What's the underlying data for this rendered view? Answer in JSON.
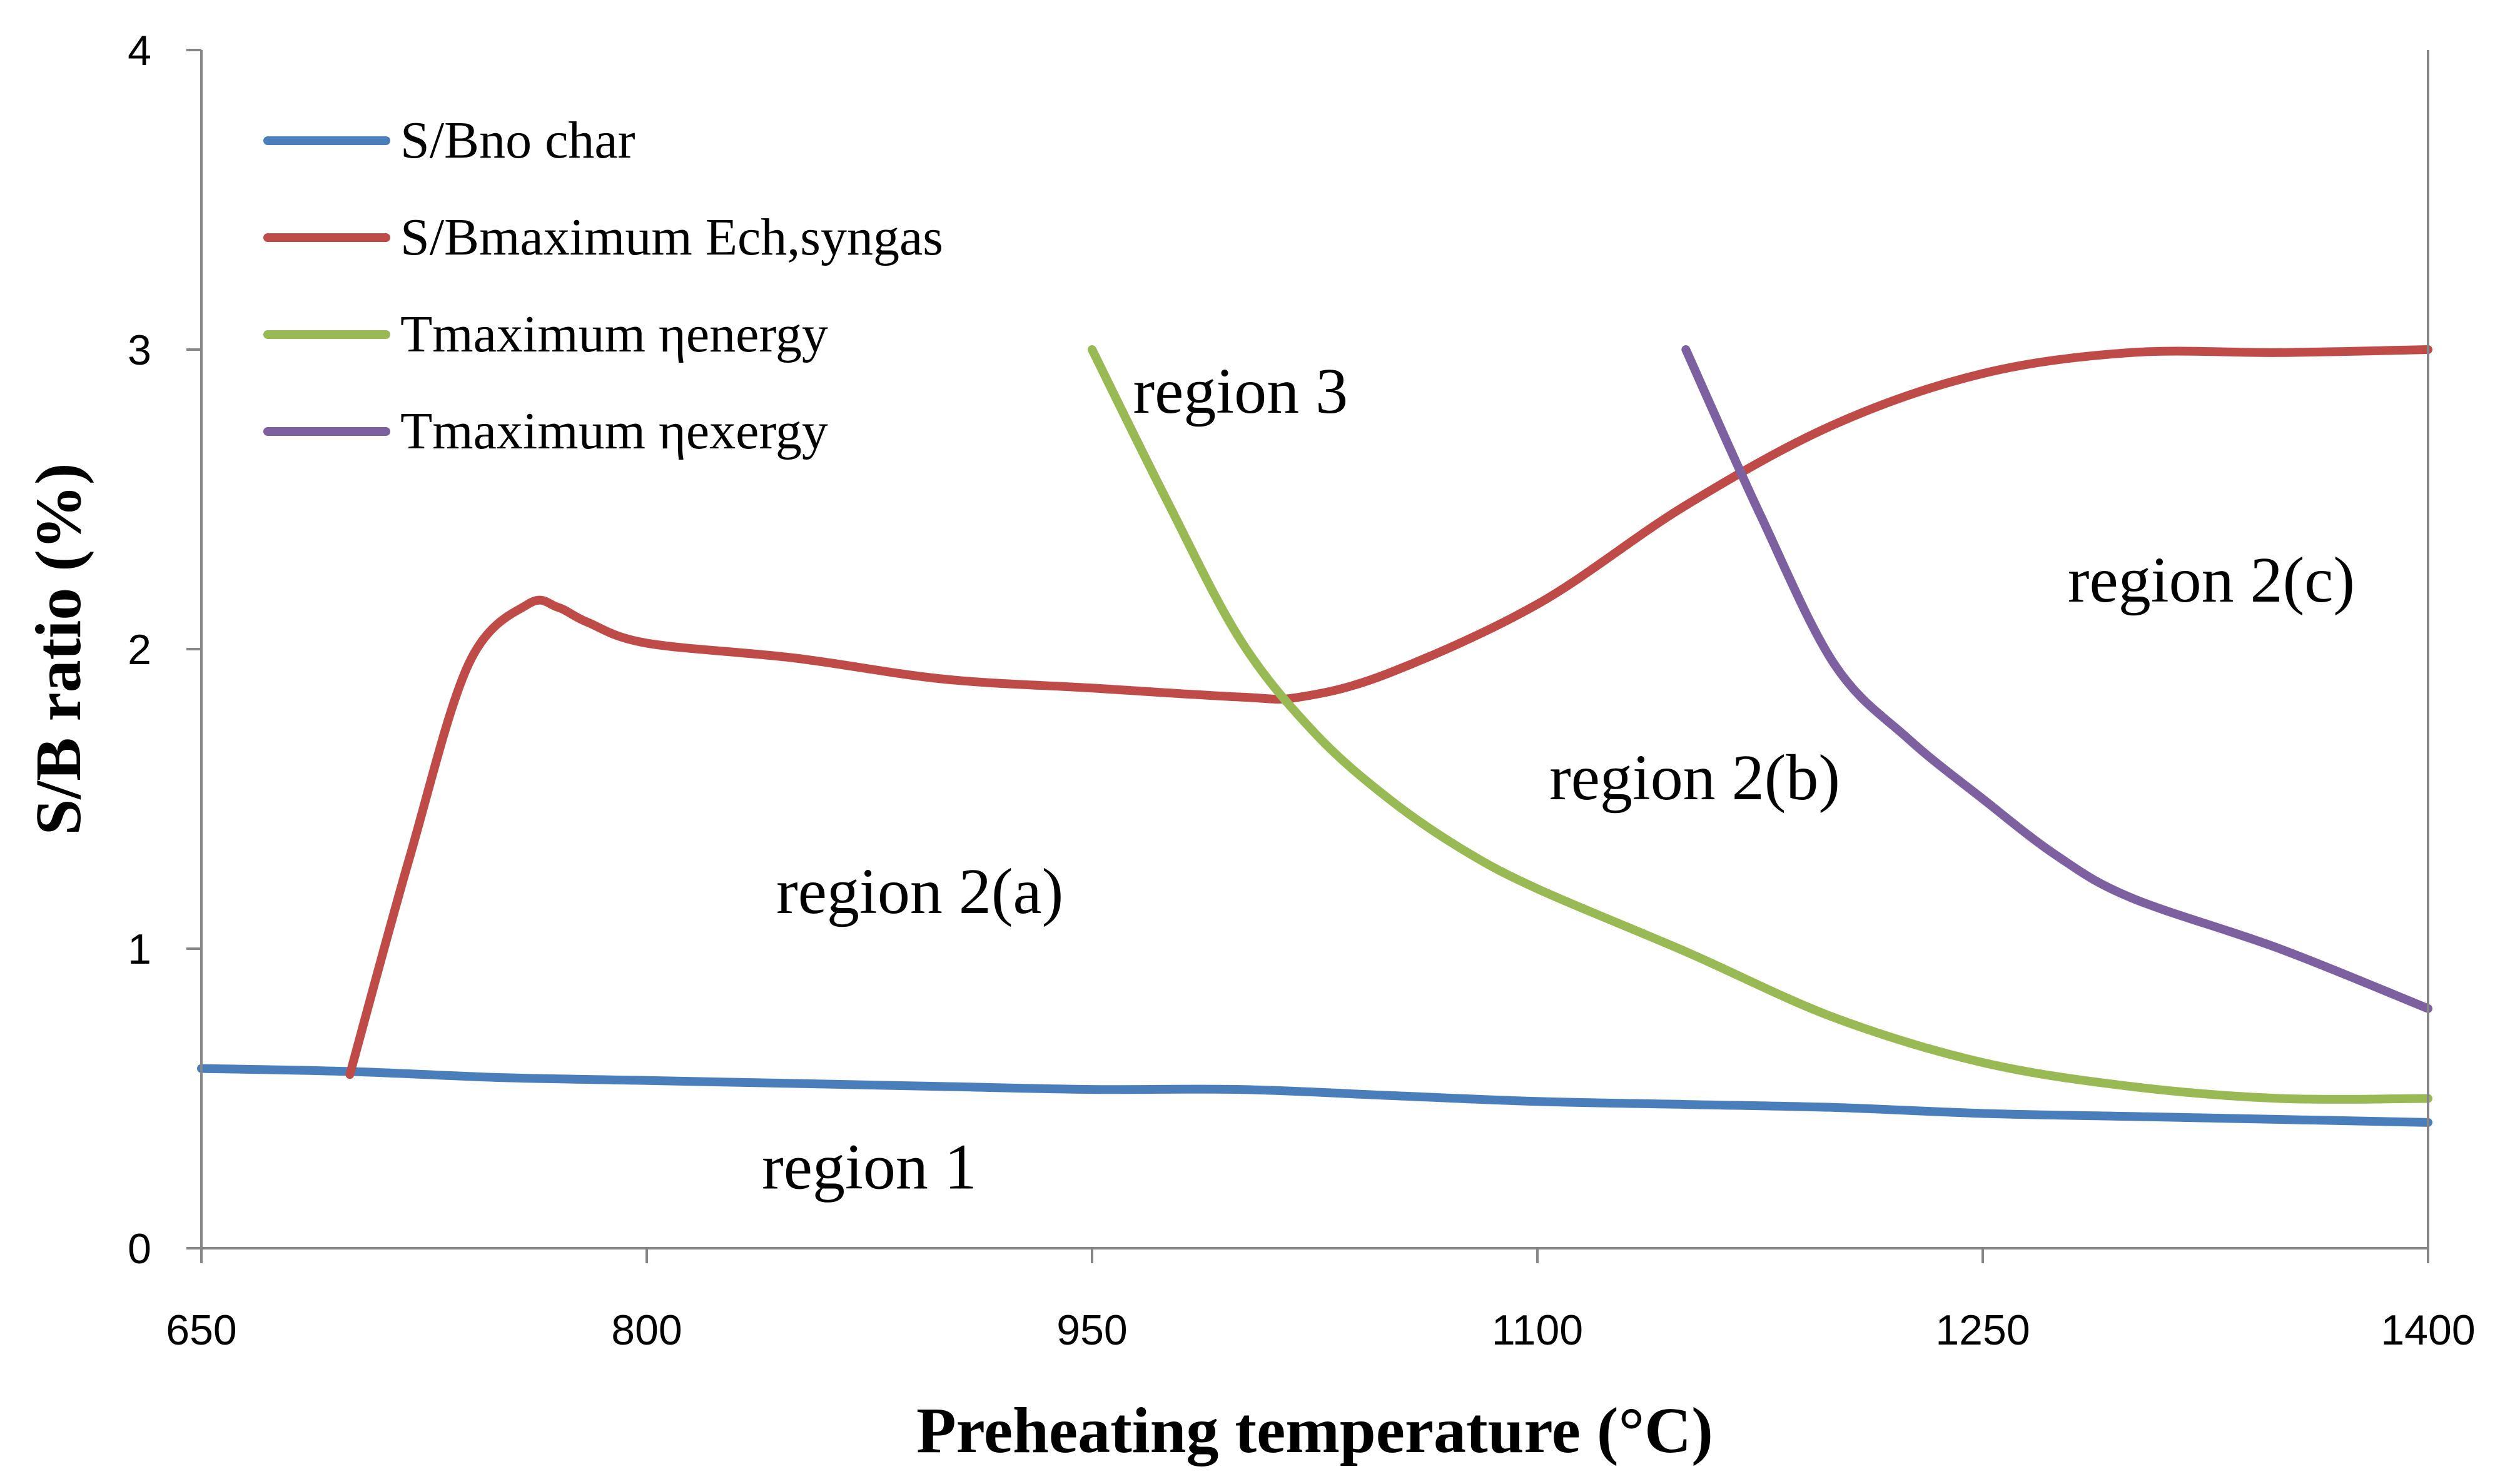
{
  "chart_data": {
    "type": "line",
    "title": "",
    "xlabel": "Preheating temperature (°C)",
    "ylabel": "S/B ratio (%)",
    "xlim": [
      650,
      1400
    ],
    "ylim": [
      0,
      4
    ],
    "x_ticks": [
      650,
      800,
      950,
      1100,
      1250,
      1400
    ],
    "y_ticks": [
      0,
      1,
      2,
      3,
      4
    ],
    "grid": false,
    "legend_position": "top-left",
    "series": [
      {
        "name": "S/Bno char",
        "color": "#4a7ebb",
        "x": [
          650,
          700,
          750,
          800,
          850,
          900,
          950,
          1000,
          1050,
          1100,
          1150,
          1200,
          1250,
          1300,
          1350,
          1400
        ],
        "y": [
          0.6,
          0.59,
          0.57,
          0.56,
          0.55,
          0.54,
          0.53,
          0.53,
          0.51,
          0.49,
          0.48,
          0.47,
          0.45,
          0.44,
          0.43,
          0.42
        ]
      },
      {
        "name": "S/Bmaximum Ech,syngas",
        "color": "#be4b48",
        "x": [
          700,
          720,
          740,
          760,
          770,
          780,
          800,
          850,
          900,
          950,
          1000,
          1020,
          1050,
          1100,
          1150,
          1200,
          1250,
          1300,
          1350,
          1400
        ],
        "y": [
          0.58,
          1.3,
          1.95,
          2.15,
          2.14,
          2.09,
          2.02,
          1.97,
          1.9,
          1.87,
          1.84,
          1.84,
          1.92,
          2.15,
          2.48,
          2.75,
          2.92,
          2.99,
          2.99,
          3.0
        ]
      },
      {
        "name": "Tmaximum ηenergy",
        "color": "#98b954",
        "x": [
          950,
          975,
          1000,
          1025,
          1050,
          1075,
          1100,
          1150,
          1200,
          1250,
          1300,
          1350,
          1400
        ],
        "y": [
          3.0,
          2.5,
          2.03,
          1.72,
          1.5,
          1.33,
          1.2,
          0.99,
          0.77,
          0.62,
          0.54,
          0.5,
          0.5
        ]
      },
      {
        "name": "Tmaximum ηexergy",
        "color": "#7d60a0",
        "x": [
          1150,
          1175,
          1200,
          1225,
          1250,
          1275,
          1300,
          1350,
          1400
        ],
        "y": [
          3.0,
          2.45,
          1.95,
          1.7,
          1.5,
          1.31,
          1.17,
          1.0,
          0.8
        ]
      }
    ],
    "annotations": [
      {
        "text": "region 1",
        "x": 875,
        "y": 0.27
      },
      {
        "text": "region 2(a)",
        "x": 892,
        "y": 1.19
      },
      {
        "text": "region 2(b)",
        "x": 1153,
        "y": 1.57
      },
      {
        "text": "region 2(c)",
        "x": 1327,
        "y": 2.23
      },
      {
        "text": "region 3",
        "x": 1000,
        "y": 2.86
      }
    ]
  }
}
